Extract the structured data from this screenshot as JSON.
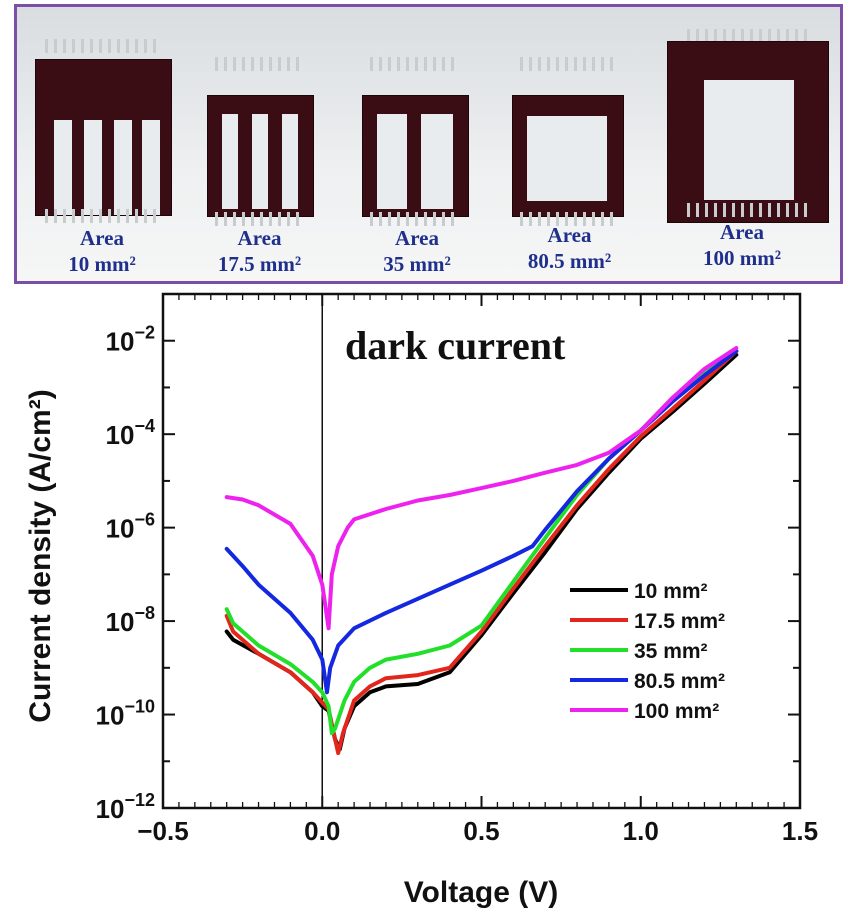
{
  "photo_panel": {
    "devices": [
      {
        "label_line1": "Area",
        "label_line2": "10 mm²"
      },
      {
        "label_line1": "Area",
        "label_line2": "17.5 mm²"
      },
      {
        "label_line1": "Area",
        "label_line2": "35 mm²"
      },
      {
        "label_line1": "Area",
        "label_line2": "80.5 mm²"
      },
      {
        "label_line1": "Area",
        "label_line2": "100 mm²"
      }
    ],
    "colors": {
      "border": "#7b4fa6",
      "label": "#1f2f8c",
      "device": "#3a0d14"
    }
  },
  "chart_data": {
    "type": "line",
    "annotation": "dark current",
    "xlabel": "Voltage (V)",
    "ylabel": "Current density (A/cm²)",
    "xlim": [
      -0.5,
      1.5
    ],
    "ylim": [
      1e-12,
      0.1
    ],
    "yscale": "log",
    "x_ticks": [
      -0.5,
      0.0,
      0.5,
      1.0,
      1.5
    ],
    "x_tick_labels": [
      "−0.5",
      "0.0",
      "0.5",
      "1.0",
      "1.5"
    ],
    "y_ticks": [
      1e-12,
      1e-10,
      1e-08,
      1e-06,
      0.0001,
      0.01
    ],
    "y_tick_labels": [
      {
        "base": "10",
        "exp": "−12"
      },
      {
        "base": "10",
        "exp": "−10"
      },
      {
        "base": "10",
        "exp": "−8"
      },
      {
        "base": "10",
        "exp": "−6"
      },
      {
        "base": "10",
        "exp": "−4"
      },
      {
        "base": "10",
        "exp": "−2"
      }
    ],
    "vertical_line_x": 0.0,
    "legend_position": "lower-right",
    "series": [
      {
        "name": "10 mm²",
        "color": "#000000",
        "points": [
          [
            -0.3,
            6e-09
          ],
          [
            -0.28,
            4e-09
          ],
          [
            -0.2,
            2e-09
          ],
          [
            -0.1,
            8e-10
          ],
          [
            -0.03,
            3e-10
          ],
          [
            0.0,
            1.5e-10
          ],
          [
            0.02,
            1.2e-10
          ],
          [
            0.04,
            3e-11
          ],
          [
            0.055,
            1.8e-11
          ],
          [
            0.07,
            5e-11
          ],
          [
            0.1,
            1.5e-10
          ],
          [
            0.15,
            3e-10
          ],
          [
            0.2,
            4e-10
          ],
          [
            0.3,
            4.5e-10
          ],
          [
            0.4,
            8e-10
          ],
          [
            0.5,
            5e-09
          ],
          [
            0.6,
            4e-08
          ],
          [
            0.7,
            3e-07
          ],
          [
            0.8,
            2.5e-06
          ],
          [
            0.9,
            1.5e-05
          ],
          [
            1.0,
            8e-05
          ],
          [
            1.1,
            0.0003
          ],
          [
            1.2,
            0.0012
          ],
          [
            1.3,
            0.005
          ]
        ]
      },
      {
        "name": "17.5 mm²",
        "color": "#e3261c",
        "points": [
          [
            -0.3,
            1.3e-08
          ],
          [
            -0.28,
            6e-09
          ],
          [
            -0.2,
            2e-09
          ],
          [
            -0.1,
            8e-10
          ],
          [
            -0.03,
            3e-10
          ],
          [
            0.0,
            1.8e-10
          ],
          [
            0.02,
            1.3e-10
          ],
          [
            0.04,
            3e-11
          ],
          [
            0.05,
            1.5e-11
          ],
          [
            0.065,
            4e-11
          ],
          [
            0.1,
            2e-10
          ],
          [
            0.15,
            4e-10
          ],
          [
            0.2,
            6e-10
          ],
          [
            0.3,
            7e-10
          ],
          [
            0.4,
            1e-09
          ],
          [
            0.5,
            6e-09
          ],
          [
            0.6,
            5e-08
          ],
          [
            0.7,
            4e-07
          ],
          [
            0.8,
            3e-06
          ],
          [
            0.9,
            1.8e-05
          ],
          [
            1.0,
            9e-05
          ],
          [
            1.1,
            0.00035
          ],
          [
            1.2,
            0.0014
          ],
          [
            1.3,
            0.006
          ]
        ]
      },
      {
        "name": "35 mm²",
        "color": "#22e02a",
        "points": [
          [
            -0.3,
            1.8e-08
          ],
          [
            -0.28,
            9e-09
          ],
          [
            -0.2,
            3e-09
          ],
          [
            -0.1,
            1.2e-09
          ],
          [
            -0.03,
            5e-10
          ],
          [
            0.0,
            3e-10
          ],
          [
            0.02,
            1.5e-10
          ],
          [
            0.03,
            4e-11
          ],
          [
            0.04,
            5e-11
          ],
          [
            0.07,
            2e-10
          ],
          [
            0.1,
            5e-10
          ],
          [
            0.15,
            1e-09
          ],
          [
            0.2,
            1.5e-09
          ],
          [
            0.3,
            2e-09
          ],
          [
            0.4,
            3e-09
          ],
          [
            0.5,
            8e-09
          ],
          [
            0.6,
            7e-08
          ],
          [
            0.7,
            6e-07
          ],
          [
            0.8,
            5e-06
          ],
          [
            0.9,
            3e-05
          ],
          [
            1.0,
            0.00012
          ],
          [
            1.1,
            0.0006
          ],
          [
            1.2,
            0.0022
          ],
          [
            1.3,
            0.006
          ]
        ]
      },
      {
        "name": "80.5 mm²",
        "color": "#1428e0",
        "points": [
          [
            -0.3,
            3.5e-07
          ],
          [
            -0.25,
            1.5e-07
          ],
          [
            -0.2,
            6e-08
          ],
          [
            -0.1,
            1.5e-08
          ],
          [
            -0.03,
            4e-09
          ],
          [
            0.0,
            1.5e-09
          ],
          [
            0.015,
            3e-10
          ],
          [
            0.025,
            1e-09
          ],
          [
            0.05,
            3e-09
          ],
          [
            0.1,
            7e-09
          ],
          [
            0.2,
            1.5e-08
          ],
          [
            0.3,
            3e-08
          ],
          [
            0.4,
            6e-08
          ],
          [
            0.5,
            1.2e-07
          ],
          [
            0.6,
            2.5e-07
          ],
          [
            0.66,
            4e-07
          ],
          [
            0.7,
            9e-07
          ],
          [
            0.8,
            6e-06
          ],
          [
            0.9,
            3e-05
          ],
          [
            1.0,
            0.00012
          ],
          [
            1.1,
            0.0005
          ],
          [
            1.2,
            0.0018
          ],
          [
            1.3,
            0.006
          ]
        ]
      },
      {
        "name": "100 mm²",
        "color": "#ee22ee",
        "points": [
          [
            -0.3,
            4.5e-06
          ],
          [
            -0.25,
            4e-06
          ],
          [
            -0.2,
            3e-06
          ],
          [
            -0.1,
            1.2e-06
          ],
          [
            -0.03,
            2.5e-07
          ],
          [
            0.0,
            6e-08
          ],
          [
            0.02,
            7e-09
          ],
          [
            0.03,
            1e-07
          ],
          [
            0.05,
            4e-07
          ],
          [
            0.08,
            1e-06
          ],
          [
            0.1,
            1.5e-06
          ],
          [
            0.2,
            2.5e-06
          ],
          [
            0.3,
            3.8e-06
          ],
          [
            0.4,
            5e-06
          ],
          [
            0.5,
            7e-06
          ],
          [
            0.6,
            1e-05
          ],
          [
            0.7,
            1.5e-05
          ],
          [
            0.8,
            2.2e-05
          ],
          [
            0.9,
            4e-05
          ],
          [
            1.0,
            0.00012
          ],
          [
            1.1,
            0.0006
          ],
          [
            1.2,
            0.0025
          ],
          [
            1.3,
            0.007
          ]
        ]
      }
    ]
  }
}
